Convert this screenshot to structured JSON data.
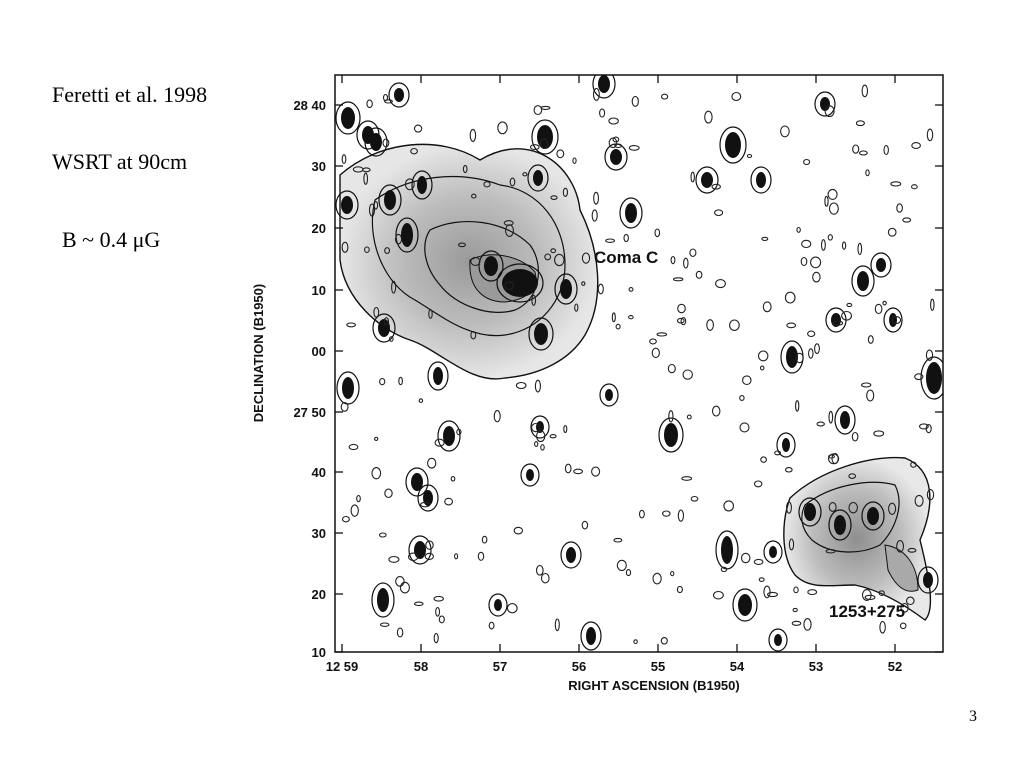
{
  "slide": {
    "notes": [
      "Feretti et al. 1998",
      "WSRT at 90cm",
      "B ~ 0.4 μG"
    ],
    "page_number": "3"
  },
  "chart_data": {
    "type": "contour",
    "xlabel": "RIGHT ASCENSION (B1950)",
    "ylabel": "DECLINATION (B1950)",
    "x_ticks": [
      "12 59",
      "58",
      "57",
      "56",
      "55",
      "54",
      "53",
      "52"
    ],
    "y_ticks": [
      "28 40",
      "30",
      "20",
      "10",
      "00",
      "27 50",
      "40",
      "30",
      "20",
      "10"
    ],
    "annotations": [
      "Coma C",
      "1253+275"
    ],
    "grid": false
  }
}
